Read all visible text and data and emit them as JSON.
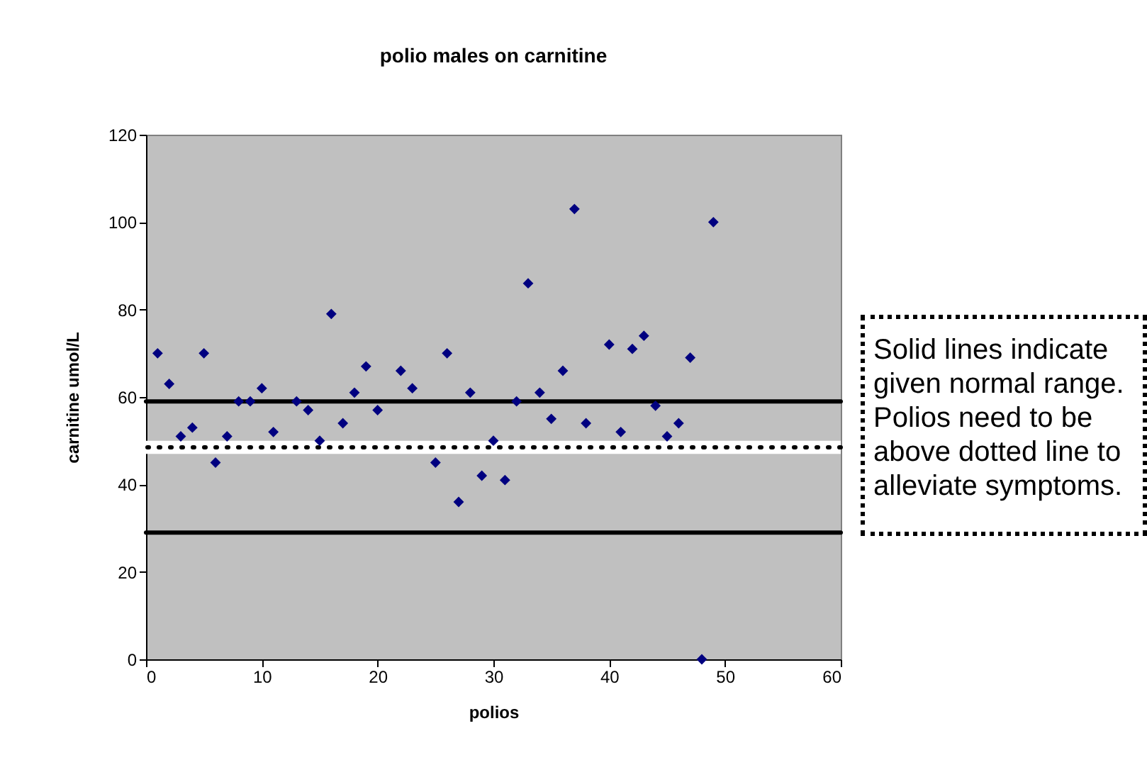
{
  "chart_data": {
    "type": "scatter",
    "title": "polio males on carnitine",
    "xlabel": "polios",
    "ylabel": "carnitine umol/L",
    "x": [
      1,
      2,
      3,
      4,
      5,
      6,
      7,
      8,
      9,
      10,
      11,
      13,
      14,
      15,
      16,
      17,
      18,
      19,
      20,
      22,
      23,
      25,
      26,
      27,
      28,
      29,
      30,
      31,
      32,
      33,
      34,
      35,
      36,
      37,
      38,
      40,
      41,
      42,
      43,
      44,
      45,
      46,
      47,
      48,
      49
    ],
    "series": [
      {
        "color": "#000080",
        "values": [
          70,
          63,
          51,
          53,
          70,
          45,
          51,
          59,
          59,
          62,
          52,
          59,
          57,
          50,
          79,
          54,
          61,
          67,
          57,
          66,
          62,
          45,
          70,
          36,
          61,
          42,
          50,
          41,
          59,
          86,
          61,
          55,
          66,
          103,
          54,
          72,
          52,
          71,
          74,
          58,
          51,
          54,
          69,
          0,
          100
        ]
      }
    ],
    "marker": "diamond",
    "grid": false,
    "xlim": [
      0,
      60
    ],
    "xticks": [
      0,
      10,
      20,
      30,
      40,
      50,
      60
    ],
    "ylim": [
      0,
      120
    ],
    "yticks": [
      0,
      20,
      40,
      60,
      80,
      100,
      120
    ],
    "bands": [
      {
        "axis": "y",
        "from": 47,
        "to": 50,
        "color": "#ffffff"
      }
    ],
    "ref_lines": [
      {
        "axis": "y",
        "value": 59,
        "color": "#000000",
        "line_style": "solid"
      },
      {
        "axis": "y",
        "value": 29,
        "color": "#000000",
        "line_style": "solid"
      },
      {
        "axis": "y",
        "value": 48.5,
        "color": "#000000",
        "line_style": "dotted"
      }
    ],
    "annotations": [
      "Solid lines indicate given normal range. Polios need to be above dotted line to alleviate symptoms."
    ]
  }
}
